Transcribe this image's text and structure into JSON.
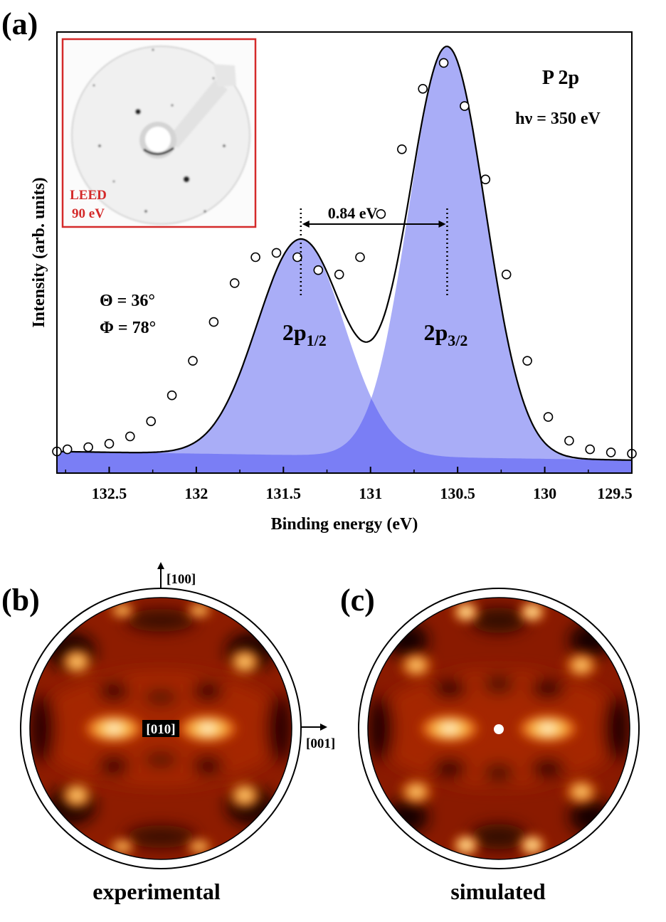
{
  "figure": {
    "panel_labels": [
      "(a)",
      "(b)",
      "(c)"
    ]
  },
  "chart_data": [
    {
      "type": "line",
      "panel": "(a)",
      "title": "P 2p",
      "photon_energy_label": "hν = 350 eV",
      "xlabel": "Binding energy (eV)",
      "ylabel": "Intensity (arb. units)",
      "xlim": [
        132.8,
        129.5
      ],
      "ylim": [
        0,
        1.0
      ],
      "x_reversed": true,
      "xticks": [
        132.5,
        132,
        131.5,
        131,
        130.5,
        130,
        129.5
      ],
      "xtick_labels": [
        "132.5",
        "132",
        "131.5",
        "131",
        "130.5",
        "130",
        "129.5"
      ],
      "series": [
        {
          "name": "experimental data",
          "style": "open circles",
          "x": [
            132.8,
            132.74,
            132.62,
            132.5,
            132.38,
            132.26,
            132.14,
            132.02,
            131.9,
            131.78,
            131.66,
            131.54,
            131.42,
            131.3,
            131.18,
            131.06,
            130.94,
            130.82,
            130.7,
            130.58,
            130.46,
            130.34,
            130.22,
            130.1,
            129.98,
            129.86,
            129.74,
            129.62,
            129.5
          ],
          "y": [
            0.05,
            0.055,
            0.06,
            0.068,
            0.085,
            0.12,
            0.18,
            0.26,
            0.35,
            0.44,
            0.5,
            0.51,
            0.5,
            0.47,
            0.46,
            0.5,
            0.6,
            0.75,
            0.89,
            0.95,
            0.85,
            0.68,
            0.46,
            0.26,
            0.13,
            0.075,
            0.055,
            0.048,
            0.045
          ]
        },
        {
          "name": "fit envelope",
          "style": "solid black line",
          "components": [
            "2p1/2",
            "2p3/2"
          ]
        }
      ],
      "components": [
        {
          "name": "2p1/2",
          "label_main": "2p",
          "label_sub": "1/2",
          "center": 131.4,
          "amplitude": 0.5,
          "sigma": 0.25,
          "color": "#a9adf7"
        },
        {
          "name": "2p3/2",
          "label_main": "2p",
          "label_sub": "3/2",
          "center": 130.56,
          "amplitude": 0.95,
          "sigma": 0.22,
          "color": "#a9adf7"
        }
      ],
      "overlap_color": "#7a7ef5",
      "baseline": {
        "at_132.8": 0.05,
        "at_129.5": 0.03
      },
      "splitting_annotation": {
        "text": "0.84 eV",
        "from": 131.4,
        "to": 130.56
      },
      "angles": {
        "theta": "Θ = 36°",
        "phi": "Φ = 78°"
      },
      "inset": {
        "line1": "LEED",
        "line2": "90 eV",
        "border_color": "#d42a2a"
      }
    },
    {
      "type": "heatmap",
      "panel": "(b)",
      "caption": "experimental",
      "direction_labels": {
        "up": "[100]",
        "right": "[001]",
        "center": "[010]"
      },
      "colormap": [
        "#000000",
        "#5a0c00",
        "#b83000",
        "#f07a10",
        "#ffd070",
        "#ffffff"
      ]
    },
    {
      "type": "heatmap",
      "panel": "(c)",
      "caption": "simulated",
      "colormap": [
        "#000000",
        "#5a0c00",
        "#b83000",
        "#f07a10",
        "#ffd070",
        "#ffffff"
      ]
    }
  ]
}
